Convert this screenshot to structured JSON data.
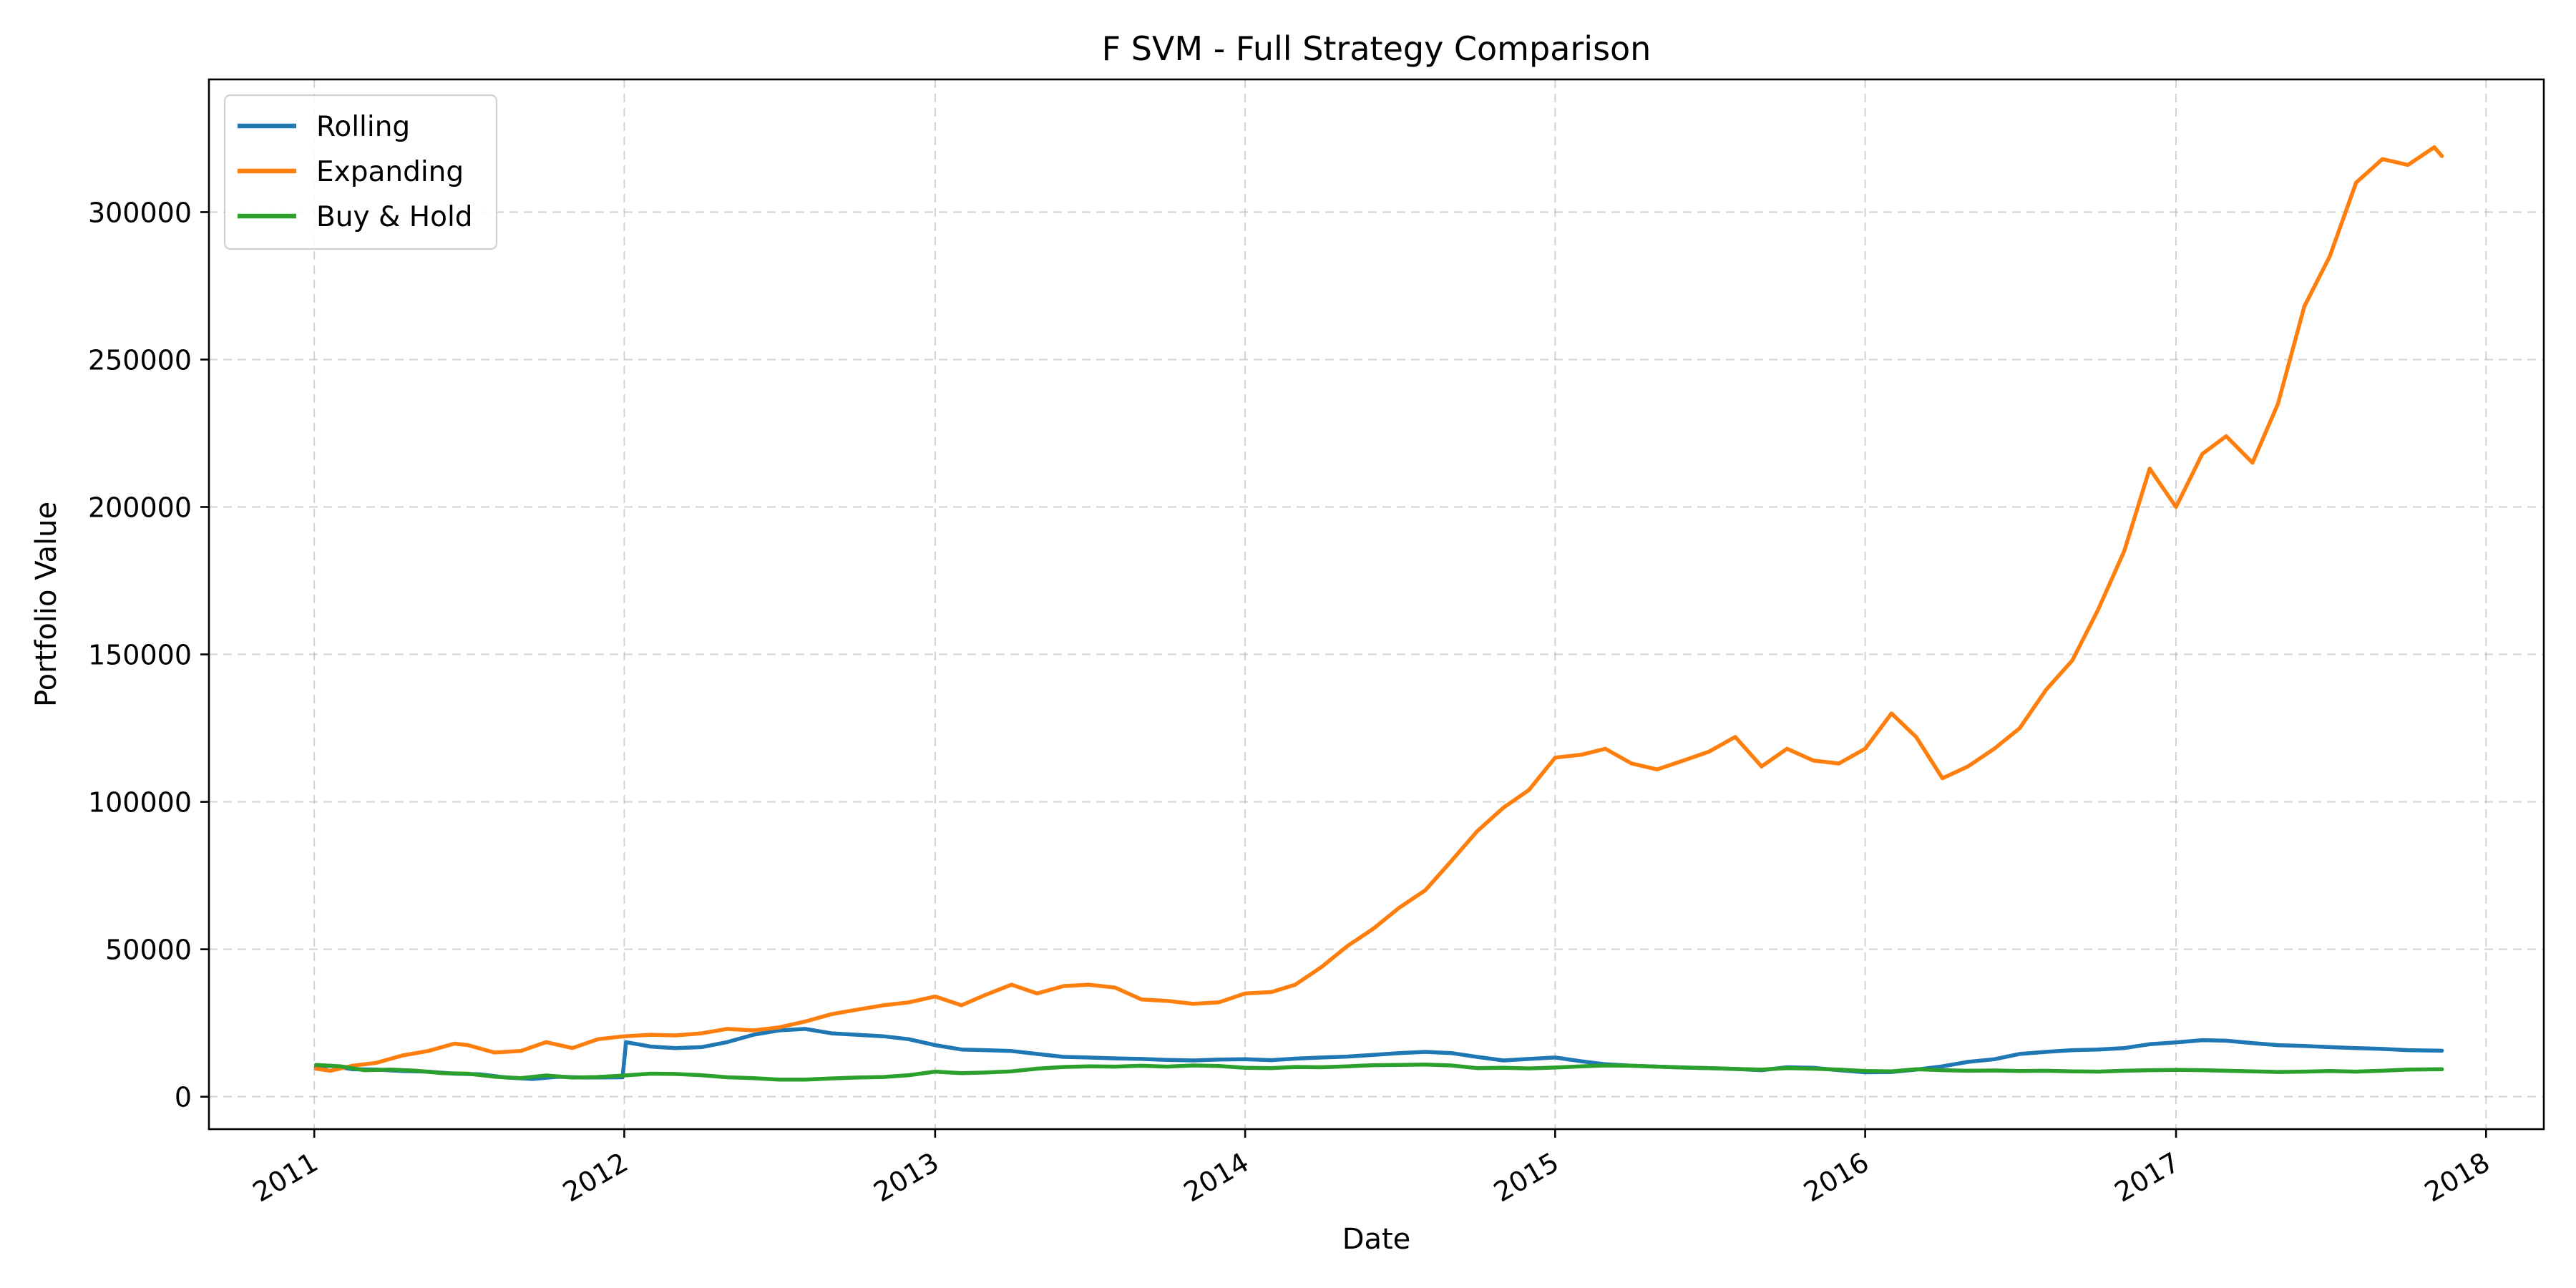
{
  "chart_data": {
    "type": "line",
    "title": "F SVM - Full Strategy Comparison",
    "xlabel": "Date",
    "ylabel": "Portfolio Value",
    "x_ticks": [
      "2011",
      "2012",
      "2013",
      "2014",
      "2015",
      "2016",
      "2017",
      "2018"
    ],
    "y_ticks": [
      "0",
      "50000",
      "100000",
      "150000",
      "200000",
      "250000",
      "300000"
    ],
    "xlim": [
      "2010-08-30",
      "2018-03-10"
    ],
    "ylim": [
      -11000,
      345000
    ],
    "grid": true,
    "legend_position": "top-left",
    "series": [
      {
        "name": "Rolling",
        "color": "#1f77b4",
        "points": [
          [
            "2011-01-03",
            10000
          ],
          [
            "2011-01-20",
            10500
          ],
          [
            "2011-02-15",
            9300
          ],
          [
            "2011-03-15",
            9200
          ],
          [
            "2011-04-15",
            8700
          ],
          [
            "2011-05-15",
            8500
          ],
          [
            "2011-06-15",
            7800
          ],
          [
            "2011-07-15",
            7600
          ],
          [
            "2011-08-15",
            6500
          ],
          [
            "2011-09-15",
            6000
          ],
          [
            "2011-10-15",
            6800
          ],
          [
            "2011-11-15",
            6500
          ],
          [
            "2011-12-30",
            6600
          ],
          [
            "2012-01-03",
            18500
          ],
          [
            "2012-02-01",
            17000
          ],
          [
            "2012-03-01",
            16500
          ],
          [
            "2012-04-01",
            16800
          ],
          [
            "2012-05-01",
            18500
          ],
          [
            "2012-06-01",
            21000
          ],
          [
            "2012-07-01",
            22500
          ],
          [
            "2012-08-01",
            23000
          ],
          [
            "2012-09-01",
            21500
          ],
          [
            "2012-10-01",
            21000
          ],
          [
            "2012-11-01",
            20500
          ],
          [
            "2012-12-01",
            19500
          ],
          [
            "2013-01-01",
            17500
          ],
          [
            "2013-02-01",
            16000
          ],
          [
            "2013-03-01",
            15800
          ],
          [
            "2013-04-01",
            15500
          ],
          [
            "2013-05-01",
            14500
          ],
          [
            "2013-06-01",
            13500
          ],
          [
            "2013-07-01",
            13300
          ],
          [
            "2013-08-01",
            13000
          ],
          [
            "2013-09-01",
            12800
          ],
          [
            "2013-10-01",
            12500
          ],
          [
            "2013-11-01",
            12300
          ],
          [
            "2013-12-01",
            12600
          ],
          [
            "2014-01-01",
            12700
          ],
          [
            "2014-02-01",
            12400
          ],
          [
            "2014-03-01",
            12900
          ],
          [
            "2014-04-01",
            13300
          ],
          [
            "2014-05-01",
            13600
          ],
          [
            "2014-06-01",
            14200
          ],
          [
            "2014-07-01",
            14800
          ],
          [
            "2014-08-01",
            15200
          ],
          [
            "2014-09-01",
            14800
          ],
          [
            "2014-10-01",
            13500
          ],
          [
            "2014-11-01",
            12300
          ],
          [
            "2014-12-01",
            12800
          ],
          [
            "2015-01-01",
            13300
          ],
          [
            "2015-02-01",
            12000
          ],
          [
            "2015-03-01",
            11000
          ],
          [
            "2015-04-01",
            10500
          ],
          [
            "2015-05-01",
            10200
          ],
          [
            "2015-06-01",
            9900
          ],
          [
            "2015-07-01",
            9700
          ],
          [
            "2015-08-01",
            9400
          ],
          [
            "2015-09-01",
            9000
          ],
          [
            "2015-10-01",
            10000
          ],
          [
            "2015-11-01",
            9800
          ],
          [
            "2015-12-01",
            9000
          ],
          [
            "2016-01-01",
            8300
          ],
          [
            "2016-02-01",
            8400
          ],
          [
            "2016-03-01",
            9200
          ],
          [
            "2016-04-01",
            10300
          ],
          [
            "2016-05-01",
            11800
          ],
          [
            "2016-06-01",
            12700
          ],
          [
            "2016-07-01",
            14500
          ],
          [
            "2016-08-01",
            15200
          ],
          [
            "2016-09-01",
            15800
          ],
          [
            "2016-10-01",
            16000
          ],
          [
            "2016-11-01",
            16500
          ],
          [
            "2016-12-01",
            17800
          ],
          [
            "2017-01-01",
            18400
          ],
          [
            "2017-02-01",
            19200
          ],
          [
            "2017-03-01",
            19000
          ],
          [
            "2017-04-01",
            18200
          ],
          [
            "2017-05-01",
            17500
          ],
          [
            "2017-06-01",
            17200
          ],
          [
            "2017-07-01",
            16800
          ],
          [
            "2017-08-01",
            16500
          ],
          [
            "2017-09-01",
            16200
          ],
          [
            "2017-10-01",
            15800
          ],
          [
            "2017-11-10",
            15600
          ]
        ]
      },
      {
        "name": "Expanding",
        "color": "#ff7f0e",
        "points": [
          [
            "2011-01-03",
            9500
          ],
          [
            "2011-01-20",
            8800
          ],
          [
            "2011-02-15",
            10500
          ],
          [
            "2011-03-15",
            11500
          ],
          [
            "2011-04-15",
            14000
          ],
          [
            "2011-05-15",
            15500
          ],
          [
            "2011-06-15",
            18000
          ],
          [
            "2011-07-01",
            17500
          ],
          [
            "2011-08-01",
            15000
          ],
          [
            "2011-09-01",
            15500
          ],
          [
            "2011-10-01",
            18500
          ],
          [
            "2011-11-01",
            16500
          ],
          [
            "2011-12-01",
            19500
          ],
          [
            "2012-01-01",
            20500
          ],
          [
            "2012-02-01",
            21000
          ],
          [
            "2012-03-01",
            20800
          ],
          [
            "2012-04-01",
            21500
          ],
          [
            "2012-05-01",
            23000
          ],
          [
            "2012-06-01",
            22500
          ],
          [
            "2012-07-01",
            23500
          ],
          [
            "2012-08-01",
            25500
          ],
          [
            "2012-09-01",
            28000
          ],
          [
            "2012-10-01",
            29500
          ],
          [
            "2012-11-01",
            31000
          ],
          [
            "2012-12-01",
            32000
          ],
          [
            "2013-01-01",
            34000
          ],
          [
            "2013-02-01",
            31000
          ],
          [
            "2013-03-01",
            34500
          ],
          [
            "2013-04-01",
            38000
          ],
          [
            "2013-05-01",
            35000
          ],
          [
            "2013-06-01",
            37500
          ],
          [
            "2013-07-01",
            38000
          ],
          [
            "2013-08-01",
            37000
          ],
          [
            "2013-09-01",
            33000
          ],
          [
            "2013-10-01",
            32500
          ],
          [
            "2013-11-01",
            31500
          ],
          [
            "2013-12-01",
            32000
          ],
          [
            "2014-01-01",
            35000
          ],
          [
            "2014-02-01",
            35500
          ],
          [
            "2014-03-01",
            38000
          ],
          [
            "2014-04-01",
            44000
          ],
          [
            "2014-05-01",
            51000
          ],
          [
            "2014-06-01",
            57000
          ],
          [
            "2014-07-01",
            64000
          ],
          [
            "2014-08-01",
            70000
          ],
          [
            "2014-09-01",
            80000
          ],
          [
            "2014-10-01",
            90000
          ],
          [
            "2014-11-01",
            98000
          ],
          [
            "2014-12-01",
            104000
          ],
          [
            "2015-01-01",
            115000
          ],
          [
            "2015-02-01",
            116000
          ],
          [
            "2015-03-01",
            118000
          ],
          [
            "2015-04-01",
            113000
          ],
          [
            "2015-05-01",
            111000
          ],
          [
            "2015-06-01",
            114000
          ],
          [
            "2015-07-01",
            117000
          ],
          [
            "2015-08-01",
            122000
          ],
          [
            "2015-09-01",
            112000
          ],
          [
            "2015-10-01",
            118000
          ],
          [
            "2015-11-01",
            114000
          ],
          [
            "2015-12-01",
            113000
          ],
          [
            "2016-01-01",
            118000
          ],
          [
            "2016-02-01",
            130000
          ],
          [
            "2016-03-01",
            122000
          ],
          [
            "2016-04-01",
            108000
          ],
          [
            "2016-05-01",
            112000
          ],
          [
            "2016-06-01",
            118000
          ],
          [
            "2016-07-01",
            125000
          ],
          [
            "2016-08-01",
            138000
          ],
          [
            "2016-09-01",
            148000
          ],
          [
            "2016-10-01",
            165000
          ],
          [
            "2016-11-01",
            185000
          ],
          [
            "2016-12-01",
            213000
          ],
          [
            "2017-01-01",
            200000
          ],
          [
            "2017-02-01",
            218000
          ],
          [
            "2017-03-01",
            224000
          ],
          [
            "2017-04-01",
            215000
          ],
          [
            "2017-05-01",
            235000
          ],
          [
            "2017-06-01",
            268000
          ],
          [
            "2017-07-01",
            285000
          ],
          [
            "2017-08-01",
            310000
          ],
          [
            "2017-09-01",
            318000
          ],
          [
            "2017-10-01",
            316000
          ],
          [
            "2017-11-01",
            322000
          ],
          [
            "2017-11-10",
            319000
          ]
        ]
      },
      {
        "name": "Buy & Hold",
        "color": "#2ca02c",
        "points": [
          [
            "2011-01-03",
            10800
          ],
          [
            "2011-02-01",
            10300
          ],
          [
            "2011-03-01",
            9000
          ],
          [
            "2011-04-01",
            9200
          ],
          [
            "2011-05-01",
            8800
          ],
          [
            "2011-06-01",
            8000
          ],
          [
            "2011-07-01",
            7800
          ],
          [
            "2011-08-01",
            6800
          ],
          [
            "2011-09-01",
            6300
          ],
          [
            "2011-10-01",
            7200
          ],
          [
            "2011-11-01",
            6500
          ],
          [
            "2011-12-01",
            6700
          ],
          [
            "2012-01-01",
            7200
          ],
          [
            "2012-02-01",
            7800
          ],
          [
            "2012-03-01",
            7700
          ],
          [
            "2012-04-01",
            7300
          ],
          [
            "2012-05-01",
            6600
          ],
          [
            "2012-06-01",
            6300
          ],
          [
            "2012-07-01",
            5800
          ],
          [
            "2012-08-01",
            5800
          ],
          [
            "2012-09-01",
            6200
          ],
          [
            "2012-10-01",
            6500
          ],
          [
            "2012-11-01",
            6700
          ],
          [
            "2012-12-01",
            7300
          ],
          [
            "2013-01-01",
            8500
          ],
          [
            "2013-02-01",
            8000
          ],
          [
            "2013-03-01",
            8200
          ],
          [
            "2013-04-01",
            8600
          ],
          [
            "2013-05-01",
            9500
          ],
          [
            "2013-06-01",
            10100
          ],
          [
            "2013-07-01",
            10300
          ],
          [
            "2013-08-01",
            10200
          ],
          [
            "2013-09-01",
            10500
          ],
          [
            "2013-10-01",
            10200
          ],
          [
            "2013-11-01",
            10600
          ],
          [
            "2013-12-01",
            10400
          ],
          [
            "2014-01-01",
            9800
          ],
          [
            "2014-02-01",
            9700
          ],
          [
            "2014-03-01",
            10100
          ],
          [
            "2014-04-01",
            10000
          ],
          [
            "2014-05-01",
            10300
          ],
          [
            "2014-06-01",
            10700
          ],
          [
            "2014-07-01",
            10800
          ],
          [
            "2014-08-01",
            10900
          ],
          [
            "2014-09-01",
            10600
          ],
          [
            "2014-10-01",
            9700
          ],
          [
            "2014-11-01",
            9800
          ],
          [
            "2014-12-01",
            9600
          ],
          [
            "2015-01-01",
            9900
          ],
          [
            "2015-02-01",
            10300
          ],
          [
            "2015-03-01",
            10600
          ],
          [
            "2015-04-01",
            10500
          ],
          [
            "2015-05-01",
            10200
          ],
          [
            "2015-06-01",
            9900
          ],
          [
            "2015-07-01",
            9700
          ],
          [
            "2015-08-01",
            9400
          ],
          [
            "2015-09-01",
            9200
          ],
          [
            "2015-10-01",
            9700
          ],
          [
            "2015-11-01",
            9500
          ],
          [
            "2015-12-01",
            9200
          ],
          [
            "2016-01-01",
            8700
          ],
          [
            "2016-02-01",
            8600
          ],
          [
            "2016-03-01",
            9300
          ],
          [
            "2016-04-01",
            9000
          ],
          [
            "2016-05-01",
            8800
          ],
          [
            "2016-06-01",
            8900
          ],
          [
            "2016-07-01",
            8700
          ],
          [
            "2016-08-01",
            8800
          ],
          [
            "2016-09-01",
            8600
          ],
          [
            "2016-10-01",
            8500
          ],
          [
            "2016-11-01",
            8800
          ],
          [
            "2016-12-01",
            9000
          ],
          [
            "2017-01-01",
            9100
          ],
          [
            "2017-02-01",
            9000
          ],
          [
            "2017-03-01",
            8800
          ],
          [
            "2017-04-01",
            8600
          ],
          [
            "2017-05-01",
            8400
          ],
          [
            "2017-06-01",
            8500
          ],
          [
            "2017-07-01",
            8700
          ],
          [
            "2017-08-01",
            8500
          ],
          [
            "2017-09-01",
            8800
          ],
          [
            "2017-10-01",
            9200
          ],
          [
            "2017-11-10",
            9300
          ]
        ]
      }
    ]
  }
}
